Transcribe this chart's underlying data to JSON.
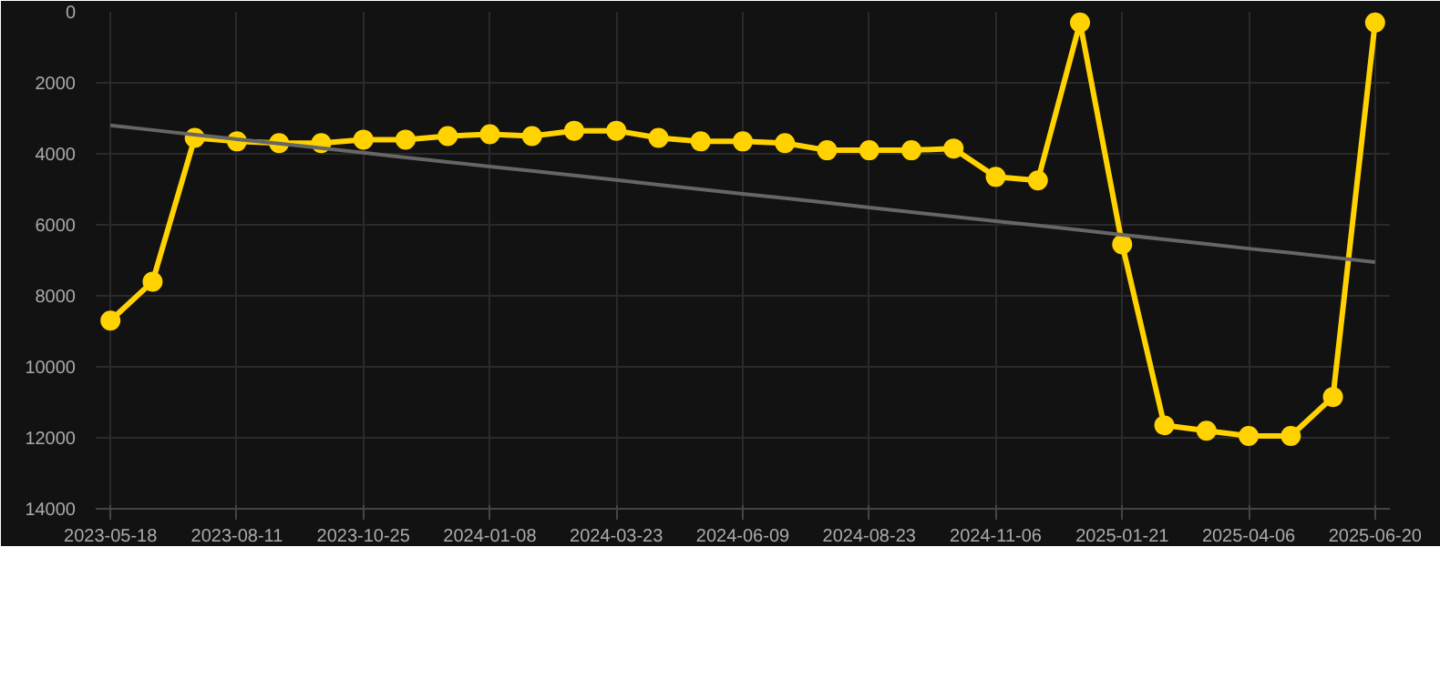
{
  "chart_data": {
    "type": "line",
    "categories": [
      "2023-05-18",
      null,
      null,
      "2023-08-11",
      null,
      null,
      "2023-10-25",
      null,
      null,
      "2024-01-08",
      null,
      null,
      "2024-03-23",
      null,
      null,
      "2024-06-09",
      null,
      null,
      "2024-08-23",
      null,
      null,
      "2024-11-06",
      null,
      null,
      "2025-01-21",
      null,
      null,
      "2025-04-06",
      null,
      null,
      "2025-06-20"
    ],
    "series": [
      {
        "color": "#ffd200",
        "values": [
          8700,
          7600,
          3550,
          3650,
          3700,
          3700,
          3600,
          3600,
          3500,
          3450,
          3500,
          3350,
          3350,
          3550,
          3650,
          3650,
          3700,
          3900,
          3900,
          3900,
          3850,
          4650,
          4750,
          300,
          6550,
          11650,
          11800,
          11950,
          11950,
          10850,
          300
        ]
      },
      {
        "type": "line",
        "color": "#666666",
        "values": [
          3200,
          3330,
          3460,
          3590,
          3710,
          3840,
          3970,
          4100,
          4230,
          4360,
          4480,
          4610,
          4740,
          4870,
          5000,
          5130,
          5250,
          5380,
          5510,
          5640,
          5770,
          5900,
          6020,
          6150,
          6280,
          6410,
          6540,
          6670,
          6790,
          6920,
          7050
        ],
        "marker": "none"
      }
    ],
    "ylim": [
      14000,
      0
    ],
    "yticks": [
      0,
      2000,
      4000,
      6000,
      8000,
      10000,
      12000,
      14000
    ],
    "grid": true,
    "marker": "circle"
  }
}
